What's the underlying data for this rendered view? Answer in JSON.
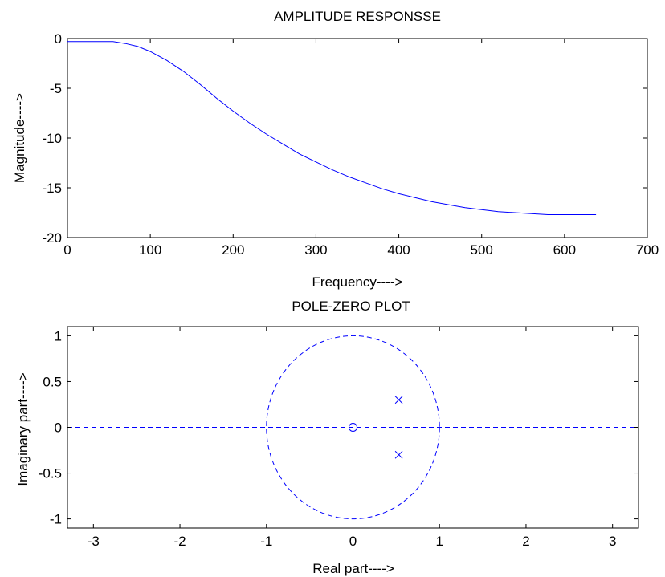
{
  "chart_data": [
    {
      "type": "line",
      "title": "AMPLITUDE RESPONSSE",
      "xlabel": "Frequency---->",
      "ylabel": "Magnitude---->",
      "xlim": [
        0,
        700
      ],
      "ylim": [
        -20,
        0
      ],
      "xticks": [
        "0",
        "100",
        "200",
        "300",
        "400",
        "500",
        "600",
        "700"
      ],
      "yticks": [
        "0",
        "-5",
        "-10",
        "-15",
        "-20"
      ],
      "grid": false,
      "line_color": "#0000ff",
      "series": [
        {
          "x": [
            0,
            20,
            40,
            55,
            70,
            85,
            100,
            120,
            140,
            160,
            180,
            200,
            220,
            240,
            260,
            280,
            300,
            320,
            340,
            360,
            380,
            400,
            420,
            440,
            460,
            480,
            500,
            520,
            540,
            560,
            580,
            600,
            620,
            638
          ],
          "y": [
            -0.3,
            -0.3,
            -0.3,
            -0.3,
            -0.5,
            -0.8,
            -1.3,
            -2.2,
            -3.3,
            -4.6,
            -6.0,
            -7.3,
            -8.5,
            -9.6,
            -10.6,
            -11.6,
            -12.4,
            -13.2,
            -13.9,
            -14.5,
            -15.1,
            -15.6,
            -16.0,
            -16.4,
            -16.7,
            -17.0,
            -17.2,
            -17.4,
            -17.5,
            -17.6,
            -17.7,
            -17.7,
            -17.7,
            -17.7
          ]
        }
      ]
    },
    {
      "type": "scatter",
      "title": "POLE-ZERO PLOT",
      "xlabel": "Real part---->",
      "ylabel": "Imaginary part---->",
      "xlim": [
        -3.3,
        3.3
      ],
      "ylim": [
        -1.1,
        1.1
      ],
      "xticks": [
        "-3",
        "-2",
        "-1",
        "0",
        "1",
        "2",
        "3"
      ],
      "yticks": [
        "1",
        "0.5",
        "0",
        "-0.5",
        "-1"
      ],
      "grid": false,
      "unit_circle": true,
      "axis_lines": true,
      "line_color": "#0000ff",
      "zeros": [
        {
          "re": 0,
          "im": 0
        }
      ],
      "poles": [
        {
          "re": 0.53,
          "im": 0.3
        },
        {
          "re": 0.53,
          "im": -0.3
        }
      ]
    }
  ]
}
